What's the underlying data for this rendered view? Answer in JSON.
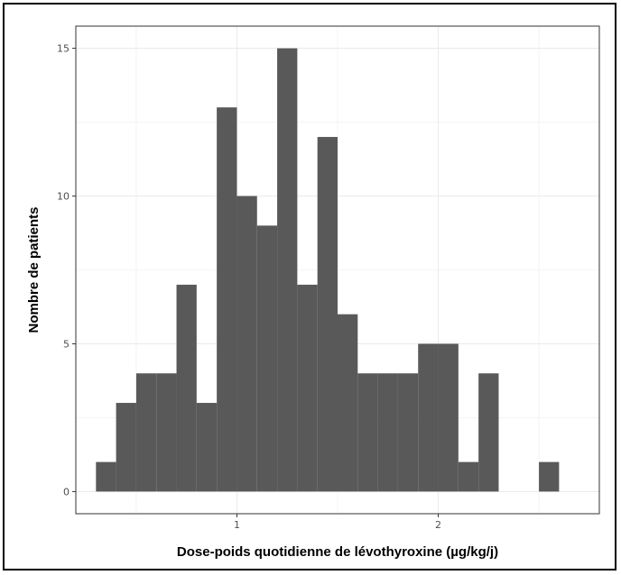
{
  "chart_data": {
    "type": "bar",
    "subtype": "histogram",
    "xlabel": "Dose-poids quotidienne de lévothyroxine (µg/kg/j)",
    "ylabel": "Nombre de patients",
    "bin_width": 0.1,
    "bins": [
      {
        "x0": 0.3,
        "x1": 0.4,
        "count": 1
      },
      {
        "x0": 0.4,
        "x1": 0.5,
        "count": 3
      },
      {
        "x0": 0.5,
        "x1": 0.6,
        "count": 4
      },
      {
        "x0": 0.6,
        "x1": 0.7,
        "count": 4
      },
      {
        "x0": 0.7,
        "x1": 0.8,
        "count": 7
      },
      {
        "x0": 0.8,
        "x1": 0.9,
        "count": 3
      },
      {
        "x0": 0.9,
        "x1": 1.0,
        "count": 13
      },
      {
        "x0": 1.0,
        "x1": 1.1,
        "count": 10
      },
      {
        "x0": 1.1,
        "x1": 1.2,
        "count": 9
      },
      {
        "x0": 1.2,
        "x1": 1.3,
        "count": 15
      },
      {
        "x0": 1.3,
        "x1": 1.4,
        "count": 7
      },
      {
        "x0": 1.4,
        "x1": 1.5,
        "count": 12
      },
      {
        "x0": 1.5,
        "x1": 1.6,
        "count": 6
      },
      {
        "x0": 1.6,
        "x1": 1.7,
        "count": 4
      },
      {
        "x0": 1.7,
        "x1": 1.8,
        "count": 4
      },
      {
        "x0": 1.8,
        "x1": 1.9,
        "count": 4
      },
      {
        "x0": 1.9,
        "x1": 2.0,
        "count": 5
      },
      {
        "x0": 2.0,
        "x1": 2.1,
        "count": 5
      },
      {
        "x0": 2.1,
        "x1": 2.2,
        "count": 1
      },
      {
        "x0": 2.2,
        "x1": 2.3,
        "count": 4
      },
      {
        "x0": 2.3,
        "x1": 2.4,
        "count": 0
      },
      {
        "x0": 2.4,
        "x1": 2.5,
        "count": 0
      },
      {
        "x0": 2.5,
        "x1": 2.6,
        "count": 1
      },
      {
        "x0": 2.6,
        "x1": 2.7,
        "count": 0
      }
    ],
    "xlim": [
      0.2,
      2.8
    ],
    "ylim": [
      -0.75,
      15.75
    ],
    "x_ticks": [
      1,
      2
    ],
    "y_ticks": [
      0,
      5,
      10,
      15
    ],
    "grid": true,
    "bar_color": "#595959",
    "theme": "bw"
  }
}
